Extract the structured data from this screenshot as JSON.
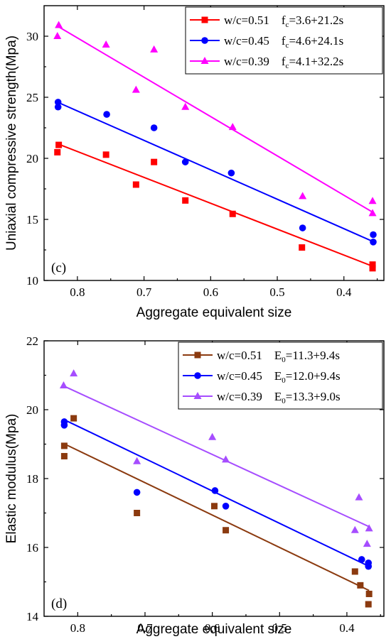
{
  "chart_data": [
    {
      "type": "scatter",
      "panel_label": "(c)",
      "xlabel": "Aggregate equivalent size",
      "ylabel": "Uniaxial compressive strength(Mpa)",
      "xlim": [
        0.85,
        0.34
      ],
      "ylim": [
        10,
        32.5
      ],
      "x_ticks": [
        0.8,
        0.7,
        0.6,
        0.5,
        0.4
      ],
      "x_tick_labels": [
        "0.8",
        "0.7",
        "0.6",
        "0.5",
        "0.4"
      ],
      "y_ticks": [
        10,
        15,
        20,
        25,
        30
      ],
      "y_tick_labels": [
        "10",
        "15",
        "20",
        "25",
        "30"
      ],
      "legend_position": "top-right",
      "series": [
        {
          "name": "w/c=0.51",
          "equation": "f",
          "equation_sub": "c",
          "equation_rest": "=3.6+21.2s",
          "color": "#ff0000",
          "marker": "square",
          "fit": [
            3.6,
            21.2
          ],
          "points": [
            [
              0.83,
              20.5
            ],
            [
              0.828,
              21.1
            ],
            [
              0.757,
              20.3
            ],
            [
              0.712,
              17.85
            ],
            [
              0.685,
              19.7
            ],
            [
              0.638,
              16.55
            ],
            [
              0.567,
              15.45
            ],
            [
              0.463,
              12.7
            ],
            [
              0.357,
              11.3
            ],
            [
              0.357,
              11.0
            ]
          ]
        },
        {
          "name": "w/c=0.45",
          "equation": "f",
          "equation_sub": "c",
          "equation_rest": "=4.6+24.1s",
          "color": "#0000ff",
          "marker": "circle",
          "fit": [
            4.6,
            24.1
          ],
          "points": [
            [
              0.829,
              24.6
            ],
            [
              0.829,
              24.2
            ],
            [
              0.756,
              23.6
            ],
            [
              0.685,
              22.5
            ],
            [
              0.638,
              19.7
            ],
            [
              0.569,
              18.8
            ],
            [
              0.462,
              14.3
            ],
            [
              0.356,
              13.75
            ],
            [
              0.356,
              13.15
            ]
          ]
        },
        {
          "name": "w/c=0.39",
          "equation": "f",
          "equation_sub": "c",
          "equation_rest": "=4.1+32.2s",
          "color": "#ff00ff",
          "marker": "triangle",
          "fit": [
            4.1,
            32.2
          ],
          "points": [
            [
              0.83,
              30.0
            ],
            [
              0.828,
              30.9
            ],
            [
              0.757,
              29.3
            ],
            [
              0.712,
              25.6
            ],
            [
              0.685,
              28.9
            ],
            [
              0.638,
              24.2
            ],
            [
              0.567,
              22.55
            ],
            [
              0.462,
              16.9
            ],
            [
              0.357,
              16.5
            ],
            [
              0.357,
              15.5
            ]
          ]
        }
      ]
    },
    {
      "type": "scatter",
      "panel_label": "(d)",
      "xlabel": "Aggregate equivalent size",
      "ylabel": "Elastic modulus(Mpa)",
      "xlim": [
        0.85,
        0.345
      ],
      "ylim": [
        14,
        22
      ],
      "x_ticks": [
        0.8,
        0.7,
        0.6,
        0.5,
        0.4
      ],
      "x_tick_labels": [
        "0.8",
        "0.7",
        "0.6",
        "0.5",
        "0.4"
      ],
      "y_ticks": [
        14,
        16,
        18,
        20,
        22
      ],
      "y_tick_labels": [
        "14",
        "16",
        "18",
        "20",
        "22"
      ],
      "legend_position": "top-right",
      "series": [
        {
          "name": "w/c=0.51",
          "equation": "E",
          "equation_sub": "0",
          "equation_rest": "=11.3+9.4s",
          "color": "#8b3a0f",
          "marker": "square",
          "fit": [
            11.3,
            9.4
          ],
          "points": [
            [
              0.82,
              18.95
            ],
            [
              0.82,
              18.65
            ],
            [
              0.806,
              19.75
            ],
            [
              0.712,
              17.0
            ],
            [
              0.597,
              17.2
            ],
            [
              0.58,
              16.5
            ],
            [
              0.388,
              15.3
            ],
            [
              0.38,
              14.9
            ],
            [
              0.367,
              14.65
            ],
            [
              0.368,
              14.35
            ]
          ]
        },
        {
          "name": "w/c=0.45",
          "equation": "E",
          "equation_sub": "0",
          "equation_rest": "=12.0+9.4s",
          "color": "#0000ff",
          "marker": "circle",
          "fit": [
            12.0,
            9.4
          ],
          "points": [
            [
              0.82,
              19.65
            ],
            [
              0.82,
              19.55
            ],
            [
              0.712,
              17.6
            ],
            [
              0.596,
              17.65
            ],
            [
              0.58,
              17.2
            ],
            [
              0.378,
              15.65
            ],
            [
              0.368,
              15.55
            ],
            [
              0.368,
              15.45
            ]
          ]
        },
        {
          "name": "w/c=0.39",
          "equation": "E",
          "equation_sub": "0",
          "equation_rest": "=13.3+9.0s",
          "color": "#a64dff",
          "marker": "triangle",
          "fit": [
            13.3,
            9.0
          ],
          "points": [
            [
              0.821,
              20.7
            ],
            [
              0.806,
              21.05
            ],
            [
              0.712,
              18.5
            ],
            [
              0.6,
              19.2
            ],
            [
              0.58,
              18.55
            ],
            [
              0.388,
              16.5
            ],
            [
              0.382,
              17.45
            ],
            [
              0.37,
              16.1
            ],
            [
              0.367,
              16.55
            ]
          ]
        }
      ]
    }
  ]
}
